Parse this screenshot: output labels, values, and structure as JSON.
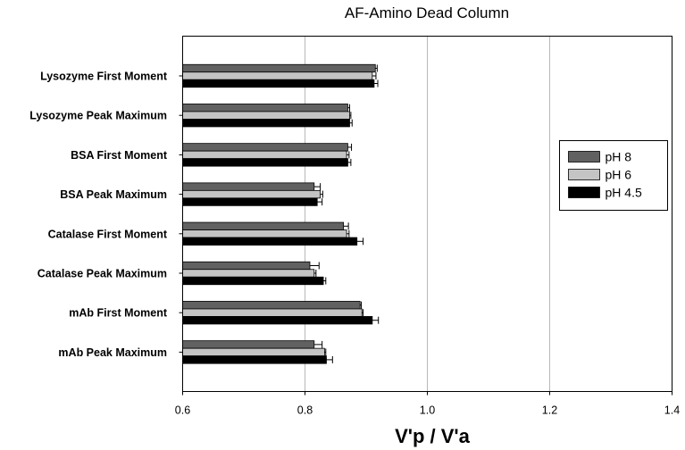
{
  "chart_data": {
    "type": "bar",
    "orientation": "horizontal",
    "title": "AF-Amino Dead Column",
    "xlabel": "V'p / V'a",
    "ylabel": "",
    "xlim": [
      0.6,
      1.4
    ],
    "xticks": [
      "0.6",
      "0.8",
      "1.0",
      "1.2",
      "1.4"
    ],
    "grid": "vertical",
    "legend_position": "right",
    "categories": [
      "Lysozyme First Moment",
      "Lysozyme Peak Maximum",
      "BSA First Moment",
      "BSA Peak Maximum",
      "Catalase First Moment",
      "Catalase Peak Maximum",
      "mAb First Moment",
      "mAb Peak Maximum"
    ],
    "series": [
      {
        "name": "pH 8",
        "color": "#616161",
        "values": [
          0.915,
          0.87,
          0.87,
          0.815,
          0.863,
          0.808,
          0.89,
          0.815
        ],
        "errors": [
          0.003,
          0.003,
          0.006,
          0.01,
          0.008,
          0.015,
          0.002,
          0.013
        ]
      },
      {
        "name": "pH 6",
        "color": "#c4c4c4",
        "values": [
          0.91,
          0.873,
          0.868,
          0.825,
          0.868,
          0.815,
          0.893,
          0.832
        ],
        "errors": [
          0.006,
          0.002,
          0.004,
          0.004,
          0.004,
          0.003,
          0.002,
          0.002
        ]
      },
      {
        "name": "pH 4.5",
        "color": "#000000",
        "values": [
          0.913,
          0.873,
          0.87,
          0.82,
          0.885,
          0.83,
          0.91,
          0.835
        ],
        "errors": [
          0.006,
          0.004,
          0.005,
          0.008,
          0.01,
          0.004,
          0.01,
          0.01
        ]
      }
    ]
  }
}
